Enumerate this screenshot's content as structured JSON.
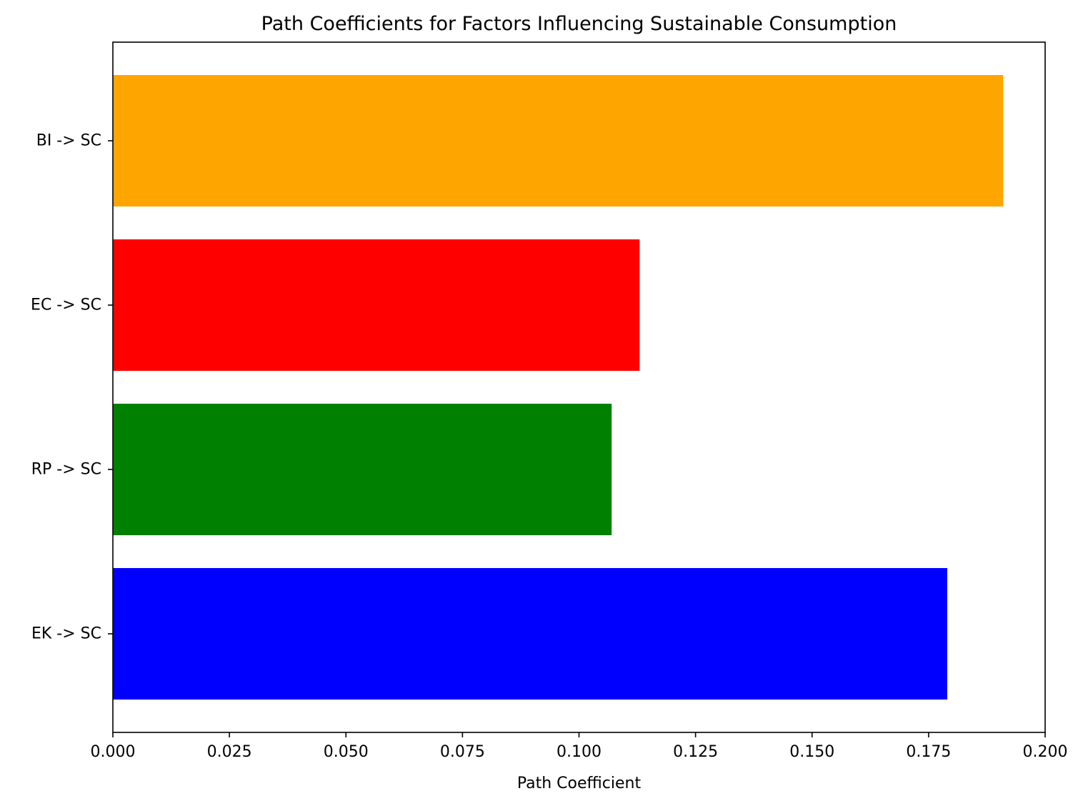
{
  "chart_data": {
    "type": "bar",
    "orientation": "horizontal",
    "title": "Path Coefficients for Factors Influencing Sustainable Consumption",
    "xlabel": "Path Coefficient",
    "ylabel": "",
    "xlim": [
      0,
      0.2
    ],
    "xticks": [
      0.0,
      0.025,
      0.05,
      0.075,
      0.1,
      0.125,
      0.15,
      0.175,
      0.2
    ],
    "xtick_labels": [
      "0.000",
      "0.025",
      "0.050",
      "0.075",
      "0.100",
      "0.125",
      "0.150",
      "0.175",
      "0.200"
    ],
    "categories": [
      "EK -> SC",
      "RP -> SC",
      "EC -> SC",
      "BI -> SC"
    ],
    "values": [
      0.179,
      0.107,
      0.113,
      0.191
    ],
    "colors": [
      "#0000ff",
      "#008000",
      "#ff0000",
      "#ffa500"
    ],
    "grid": false,
    "legend": false
  }
}
